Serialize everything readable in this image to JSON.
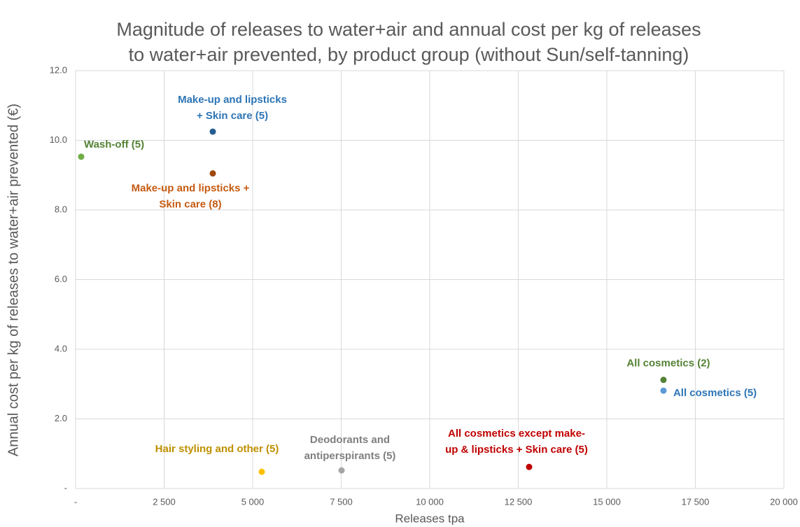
{
  "chart_data": {
    "type": "scatter",
    "title": [
      "Magnitude of releases to water+air and annual cost per kg of releases",
      "to water+air prevented, by product group (without Sun/self-tanning)"
    ],
    "xlabel": "Releases tpa",
    "ylabel": "Annual cost per kg of releases to water+air prevented (€)",
    "xlim": [
      0,
      20000
    ],
    "xticks": [
      {
        "value": 0,
        "label": "-"
      },
      {
        "value": 2500,
        "label": "2 500"
      },
      {
        "value": 5000,
        "label": "5 000"
      },
      {
        "value": 7500,
        "label": "7 500"
      },
      {
        "value": 10000,
        "label": "10 000"
      },
      {
        "value": 12500,
        "label": "12 500"
      },
      {
        "value": 15000,
        "label": "15 000"
      },
      {
        "value": 17500,
        "label": "17 500"
      },
      {
        "value": 20000,
        "label": "20 000"
      }
    ],
    "ylim": [
      0,
      12
    ],
    "yticks": [
      {
        "value": 0,
        "label": "-"
      },
      {
        "value": 2,
        "label": "2.0"
      },
      {
        "value": 4,
        "label": "4.0"
      },
      {
        "value": 6,
        "label": "6.0"
      },
      {
        "value": 8,
        "label": "8.0"
      },
      {
        "value": 10,
        "label": "10.0"
      },
      {
        "value": 12,
        "label": "12.0"
      }
    ],
    "grid": true,
    "series": [
      {
        "label": [
          "Make-up and lipsticks",
          "+ Skin care (5)"
        ],
        "color": "#255e91",
        "label_color": "#2e75b6",
        "x": 3874,
        "y": 10.25
      },
      {
        "label": [
          "Wash-off (5)"
        ],
        "color": "#70ad47",
        "label_color": "#548235",
        "x": 158,
        "y": 9.53
      },
      {
        "label": [
          "Make-up and lipsticks +",
          "Skin care (8)"
        ],
        "color": "#9e480e",
        "label_color": "#c55a11",
        "x": 3874,
        "y": 9.05
      },
      {
        "label": [
          "All cosmetics (2)"
        ],
        "color": "#548235",
        "label_color": "#548235",
        "x": 16600,
        "y": 3.12
      },
      {
        "label": [
          "All cosmetics (5)"
        ],
        "color": "#5b9bd5",
        "label_color": "#2e75b6",
        "x": 16600,
        "y": 2.81
      },
      {
        "label": [
          "Hair styling and other (5)"
        ],
        "color": "#ffc000",
        "label_color": "#bf9000",
        "x": 5257,
        "y": 0.48
      },
      {
        "label": [
          "Deodorants and",
          "antiperspirants (5)"
        ],
        "color": "#a5a5a5",
        "label_color": "#7f7f7f",
        "x": 7510,
        "y": 0.52
      },
      {
        "label": [
          "All cosmetics except make-",
          "up & lipsticks + Skin care (5)"
        ],
        "color": "#c00000",
        "label_color": "#c00000",
        "x": 12806,
        "y": 0.62
      }
    ]
  }
}
